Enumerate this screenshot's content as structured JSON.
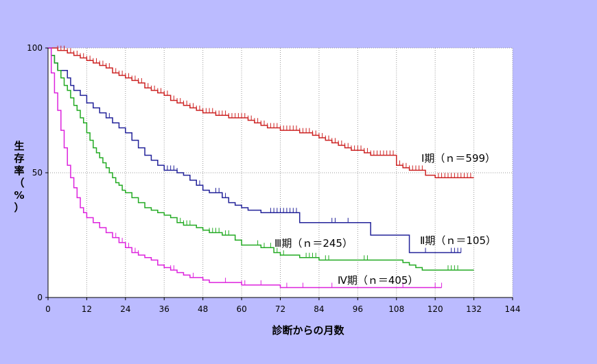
{
  "chart_data": {
    "type": "line",
    "xlabel": "診断からの月数",
    "ylabel": "生存率（%）",
    "xlim": [
      0,
      144
    ],
    "ylim": [
      0,
      100
    ],
    "x_ticks": [
      "0",
      "12",
      "24",
      "36",
      "48",
      "60",
      "72",
      "84",
      "96",
      "108",
      "120",
      "132",
      "144"
    ],
    "y_ticks": [
      "0",
      "50",
      "100"
    ],
    "grid": "vertical dotted lines every 12 months, horizontal dotted line at 50",
    "background": "#ffffff",
    "series": [
      {
        "name": "Ⅰ期（ｎ＝599）",
        "color": "#cc2222",
        "points": [
          [
            0,
            100
          ],
          [
            3,
            99
          ],
          [
            6,
            98
          ],
          [
            8,
            97
          ],
          [
            10,
            96
          ],
          [
            12,
            95
          ],
          [
            14,
            94
          ],
          [
            16,
            93
          ],
          [
            18,
            92
          ],
          [
            20,
            90
          ],
          [
            22,
            89
          ],
          [
            24,
            88
          ],
          [
            26,
            87
          ],
          [
            28,
            86
          ],
          [
            30,
            84
          ],
          [
            32,
            83
          ],
          [
            34,
            82
          ],
          [
            36,
            81
          ],
          [
            38,
            79
          ],
          [
            40,
            78
          ],
          [
            42,
            77
          ],
          [
            44,
            76
          ],
          [
            46,
            75
          ],
          [
            48,
            74
          ],
          [
            50,
            74
          ],
          [
            52,
            73
          ],
          [
            54,
            73
          ],
          [
            56,
            72
          ],
          [
            60,
            72
          ],
          [
            62,
            71
          ],
          [
            64,
            70
          ],
          [
            66,
            69
          ],
          [
            68,
            68
          ],
          [
            70,
            68
          ],
          [
            72,
            67
          ],
          [
            76,
            67
          ],
          [
            78,
            66
          ],
          [
            82,
            65
          ],
          [
            84,
            64
          ],
          [
            86,
            63
          ],
          [
            88,
            62
          ],
          [
            90,
            61
          ],
          [
            92,
            60
          ],
          [
            94,
            59
          ],
          [
            96,
            59
          ],
          [
            98,
            58
          ],
          [
            100,
            57
          ],
          [
            104,
            57
          ],
          [
            106,
            57
          ],
          [
            108,
            53
          ],
          [
            110,
            52
          ],
          [
            112,
            51
          ],
          [
            116,
            51
          ],
          [
            117,
            49
          ],
          [
            120,
            48
          ],
          [
            132,
            48
          ]
        ],
        "censor": [
          3,
          4,
          5,
          6,
          7,
          8,
          9,
          10,
          11,
          12,
          13,
          14,
          15,
          16,
          17,
          18,
          19,
          20,
          21,
          22,
          23,
          24,
          25,
          26,
          27,
          28,
          29,
          30,
          31,
          32,
          33,
          34,
          35,
          36,
          37,
          38,
          39,
          40,
          41,
          42,
          43,
          44,
          45,
          46,
          47,
          48,
          49,
          50,
          51,
          52,
          53,
          54,
          55,
          56,
          57,
          58,
          59,
          60,
          61,
          62,
          63,
          64,
          65,
          66,
          67,
          68,
          69,
          70,
          71,
          72,
          73,
          74,
          75,
          76,
          77,
          78,
          79,
          80,
          81,
          82,
          83,
          84,
          85,
          86,
          87,
          88,
          89,
          90,
          91,
          92,
          93,
          94,
          95,
          96,
          97,
          98,
          99,
          100,
          101,
          102,
          103,
          104,
          105,
          106,
          107,
          109,
          110,
          111,
          112,
          113,
          114,
          115,
          116,
          121,
          122,
          123,
          124,
          125,
          126,
          127,
          128,
          129,
          130,
          131
        ]
      },
      {
        "name": "Ⅱ期（ｎ＝105）",
        "color": "#222299",
        "points": [
          [
            0,
            100
          ],
          [
            1,
            97
          ],
          [
            2,
            94
          ],
          [
            3,
            91
          ],
          [
            6,
            88
          ],
          [
            7,
            85
          ],
          [
            8,
            83
          ],
          [
            10,
            81
          ],
          [
            12,
            78
          ],
          [
            14,
            76
          ],
          [
            16,
            74
          ],
          [
            18,
            72
          ],
          [
            20,
            70
          ],
          [
            22,
            68
          ],
          [
            24,
            66
          ],
          [
            26,
            63
          ],
          [
            28,
            60
          ],
          [
            30,
            57
          ],
          [
            32,
            55
          ],
          [
            34,
            53
          ],
          [
            36,
            51
          ],
          [
            40,
            50
          ],
          [
            42,
            49
          ],
          [
            44,
            47
          ],
          [
            46,
            45
          ],
          [
            48,
            43
          ],
          [
            50,
            42
          ],
          [
            54,
            40
          ],
          [
            56,
            38
          ],
          [
            58,
            37
          ],
          [
            60,
            36
          ],
          [
            62,
            35
          ],
          [
            66,
            34
          ],
          [
            78,
            30
          ],
          [
            90,
            30
          ],
          [
            100,
            25
          ],
          [
            112,
            18
          ],
          [
            128,
            18
          ]
        ],
        "censor": [
          19,
          20,
          37,
          38,
          39,
          40,
          46,
          47,
          48,
          52,
          53,
          54,
          55,
          69,
          70,
          71,
          72,
          73,
          74,
          75,
          76,
          77,
          88,
          89,
          93,
          117,
          125,
          126,
          127,
          128
        ]
      },
      {
        "name": "Ⅲ期（ｎ＝245）",
        "color": "#22aa22",
        "points": [
          [
            0,
            100
          ],
          [
            1,
            97
          ],
          [
            2,
            94
          ],
          [
            3,
            91
          ],
          [
            4,
            88
          ],
          [
            5,
            85
          ],
          [
            6,
            83
          ],
          [
            7,
            80
          ],
          [
            8,
            77
          ],
          [
            9,
            75
          ],
          [
            10,
            72
          ],
          [
            11,
            70
          ],
          [
            12,
            66
          ],
          [
            13,
            63
          ],
          [
            14,
            60
          ],
          [
            15,
            58
          ],
          [
            16,
            56
          ],
          [
            17,
            54
          ],
          [
            18,
            52
          ],
          [
            19,
            50
          ],
          [
            20,
            48
          ],
          [
            21,
            46
          ],
          [
            22,
            45
          ],
          [
            23,
            43
          ],
          [
            24,
            42
          ],
          [
            26,
            40
          ],
          [
            28,
            38
          ],
          [
            30,
            36
          ],
          [
            32,
            35
          ],
          [
            34,
            34
          ],
          [
            36,
            33
          ],
          [
            38,
            32
          ],
          [
            40,
            30
          ],
          [
            42,
            29
          ],
          [
            46,
            28
          ],
          [
            48,
            27
          ],
          [
            50,
            26
          ],
          [
            54,
            25
          ],
          [
            58,
            23
          ],
          [
            60,
            21
          ],
          [
            66,
            20
          ],
          [
            70,
            18
          ],
          [
            72,
            17
          ],
          [
            78,
            16
          ],
          [
            84,
            15
          ],
          [
            108,
            15
          ],
          [
            110,
            14
          ],
          [
            112,
            13
          ],
          [
            114,
            12
          ],
          [
            116,
            11
          ],
          [
            132,
            11
          ]
        ],
        "censor": [
          41,
          42,
          43,
          44,
          50,
          51,
          52,
          53,
          55,
          56,
          65,
          67,
          69,
          71,
          73,
          80,
          81,
          82,
          83,
          86,
          87,
          98,
          99,
          124,
          125,
          126,
          127
        ]
      },
      {
        "name": "Ⅳ期（ｎ＝405）",
        "color": "#dd22dd",
        "points": [
          [
            0,
            100
          ],
          [
            1,
            90
          ],
          [
            2,
            82
          ],
          [
            3,
            75
          ],
          [
            4,
            67
          ],
          [
            5,
            60
          ],
          [
            6,
            53
          ],
          [
            7,
            48
          ],
          [
            8,
            44
          ],
          [
            9,
            40
          ],
          [
            10,
            36
          ],
          [
            11,
            34
          ],
          [
            12,
            32
          ],
          [
            14,
            30
          ],
          [
            16,
            28
          ],
          [
            18,
            26
          ],
          [
            20,
            24
          ],
          [
            22,
            22
          ],
          [
            24,
            20
          ],
          [
            26,
            18
          ],
          [
            28,
            17
          ],
          [
            30,
            16
          ],
          [
            32,
            15
          ],
          [
            34,
            13
          ],
          [
            36,
            12
          ],
          [
            38,
            11
          ],
          [
            40,
            10
          ],
          [
            42,
            9
          ],
          [
            44,
            8
          ],
          [
            48,
            7
          ],
          [
            50,
            6
          ],
          [
            56,
            6
          ],
          [
            60,
            5
          ],
          [
            66,
            5
          ],
          [
            72,
            4
          ],
          [
            90,
            4
          ],
          [
            122,
            4
          ]
        ],
        "censor": [
          20,
          21,
          22,
          23,
          24,
          25,
          26,
          27,
          28,
          38,
          39,
          45,
          55,
          60,
          61,
          66,
          74,
          79,
          88,
          110,
          120,
          122
        ]
      }
    ]
  }
}
